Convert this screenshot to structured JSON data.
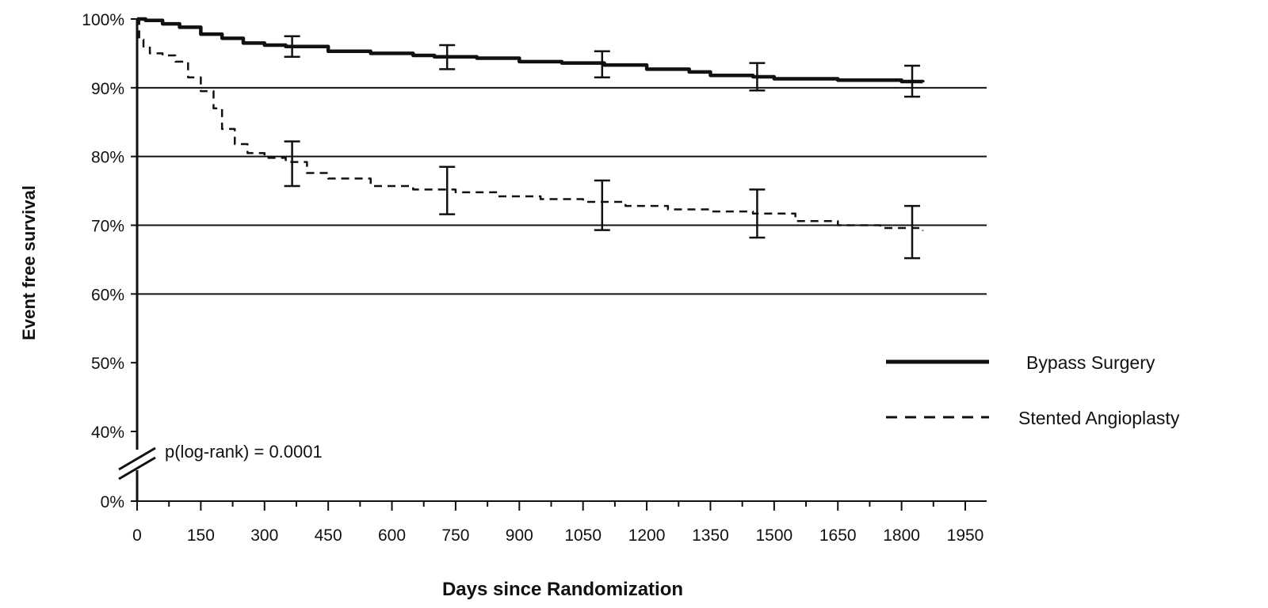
{
  "chart_data": {
    "type": "line",
    "xlabel": "Days since Randomization",
    "ylabel": "Event free survival",
    "xlim": [
      0,
      1950
    ],
    "x_ticks": [
      0,
      150,
      300,
      450,
      600,
      750,
      900,
      1050,
      1200,
      1350,
      1500,
      1650,
      1800,
      1950
    ],
    "y_ticks": [
      0,
      40,
      50,
      60,
      70,
      80,
      90,
      100
    ],
    "y_tick_labels": [
      "0%",
      "40%",
      "50%",
      "60%",
      "70%",
      "80%",
      "90%",
      "100%"
    ],
    "y_axis_break": "between 0% and 40%",
    "gridlines_y": [
      60,
      70,
      80,
      90
    ],
    "legend_position": "right",
    "annotation": "p(log-rank) = 0.0001",
    "series": [
      {
        "name": "Bypass Surgery",
        "style": "solid",
        "color": "#111111",
        "points": [
          [
            0,
            100
          ],
          [
            20,
            99.8
          ],
          [
            60,
            99.3
          ],
          [
            100,
            98.8
          ],
          [
            150,
            97.8
          ],
          [
            200,
            97.2
          ],
          [
            250,
            96.5
          ],
          [
            300,
            96.2
          ],
          [
            350,
            96.0
          ],
          [
            450,
            95.3
          ],
          [
            550,
            95.0
          ],
          [
            650,
            94.7
          ],
          [
            700,
            94.5
          ],
          [
            800,
            94.3
          ],
          [
            900,
            93.8
          ],
          [
            1000,
            93.6
          ],
          [
            1100,
            93.3
          ],
          [
            1200,
            92.7
          ],
          [
            1300,
            92.3
          ],
          [
            1350,
            91.8
          ],
          [
            1450,
            91.6
          ],
          [
            1500,
            91.3
          ],
          [
            1650,
            91.1
          ],
          [
            1800,
            90.9
          ],
          [
            1850,
            90.8
          ]
        ],
        "error_bars": [
          {
            "x": 365,
            "y": 96.0,
            "low": 94.5,
            "high": 97.5
          },
          {
            "x": 730,
            "y": 94.5,
            "low": 92.7,
            "high": 96.2
          },
          {
            "x": 1095,
            "y": 93.4,
            "low": 91.5,
            "high": 95.3
          },
          {
            "x": 1460,
            "y": 91.6,
            "low": 89.6,
            "high": 93.6
          },
          {
            "x": 1825,
            "y": 90.9,
            "low": 88.7,
            "high": 93.2
          }
        ]
      },
      {
        "name": "Stented Angioplasty",
        "style": "dashed",
        "color": "#111111",
        "points": [
          [
            0,
            100
          ],
          [
            5,
            97
          ],
          [
            15,
            96
          ],
          [
            30,
            95
          ],
          [
            60,
            94.7
          ],
          [
            90,
            93.8
          ],
          [
            120,
            91.5
          ],
          [
            150,
            89.5
          ],
          [
            180,
            87
          ],
          [
            200,
            84
          ],
          [
            230,
            81.8
          ],
          [
            260,
            80.5
          ],
          [
            300,
            79.8
          ],
          [
            350,
            79.2
          ],
          [
            400,
            77.6
          ],
          [
            450,
            76.8
          ],
          [
            550,
            75.7
          ],
          [
            650,
            75.2
          ],
          [
            750,
            74.8
          ],
          [
            850,
            74.2
          ],
          [
            950,
            73.8
          ],
          [
            1050,
            73.4
          ],
          [
            1150,
            72.8
          ],
          [
            1250,
            72.3
          ],
          [
            1350,
            72.0
          ],
          [
            1450,
            71.7
          ],
          [
            1550,
            70.6
          ],
          [
            1650,
            70.0
          ],
          [
            1750,
            69.6
          ],
          [
            1850,
            69.2
          ]
        ],
        "error_bars": [
          {
            "x": 365,
            "y": 79.0,
            "low": 75.7,
            "high": 82.2
          },
          {
            "x": 730,
            "y": 75.0,
            "low": 71.6,
            "high": 78.5
          },
          {
            "x": 1095,
            "y": 73.0,
            "low": 69.3,
            "high": 76.5
          },
          {
            "x": 1460,
            "y": 71.7,
            "low": 68.2,
            "high": 75.2
          },
          {
            "x": 1825,
            "y": 69.1,
            "low": 65.2,
            "high": 72.8
          }
        ]
      }
    ]
  }
}
